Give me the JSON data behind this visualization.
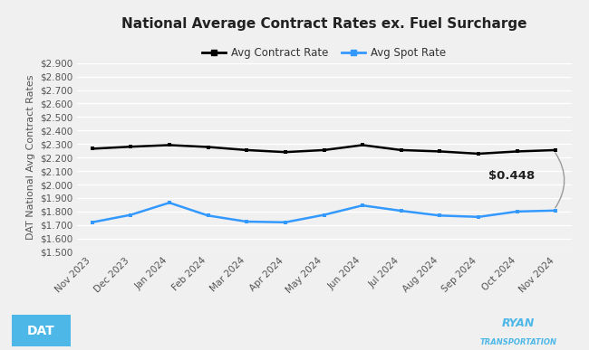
{
  "title": "National Average Contract Rates ex. Fuel Surcharge",
  "ylabel": "DAT National Avg Contract Rates",
  "categories": [
    "Nov 2023",
    "Dec 2023",
    "Jan 2024",
    "Feb 2024",
    "Mar 2024",
    "Apr 2024",
    "May 2024",
    "Jun 2024",
    "Jul 2024",
    "Aug 2024",
    "Sep 2024",
    "Oct 2024",
    "Nov 2024"
  ],
  "contract_rate": [
    2.265,
    2.28,
    2.292,
    2.278,
    2.255,
    2.24,
    2.255,
    2.292,
    2.255,
    2.245,
    2.228,
    2.245,
    2.255
  ],
  "spot_rate": [
    1.72,
    1.775,
    1.865,
    1.77,
    1.725,
    1.72,
    1.775,
    1.845,
    1.805,
    1.77,
    1.76,
    1.8,
    1.807
  ],
  "contract_color": "#000000",
  "spot_color": "#3399ff",
  "contract_label": "Avg Contract Rate",
  "spot_label": "Avg Spot Rate",
  "annotation_text": "$0.448",
  "ylim_min": 1.5,
  "ylim_max": 2.9,
  "ytick_step": 0.1,
  "background_color": "#f0f0f0",
  "plot_bg_color": "#f0f0f0",
  "grid_color": "#ffffff",
  "title_fontsize": 11,
  "axis_label_fontsize": 8,
  "tick_fontsize": 7.5,
  "legend_fontsize": 8.5,
  "dat_logo_color": "#4db8e8",
  "ryan_logo_color": "#4db8e8"
}
